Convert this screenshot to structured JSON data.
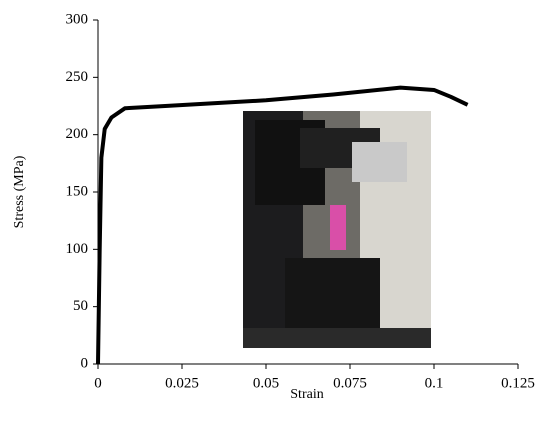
{
  "chart_data": {
    "type": "line",
    "xlabel": "Strain",
    "ylabel": "Stress  (MPa)",
    "x": [
      0,
      0.0005,
      0.001,
      0.002,
      0.004,
      0.008,
      0.02,
      0.05,
      0.07,
      0.09,
      0.1,
      0.105,
      0.11
    ],
    "values": [
      0,
      100,
      180,
      205,
      215,
      223,
      225,
      230,
      235,
      241,
      239,
      233,
      226
    ],
    "color": "#000000",
    "xlim": [
      0,
      0.125
    ],
    "xticks": [
      0,
      0.025,
      0.05,
      0.075,
      0.1,
      0.125
    ],
    "ylim": [
      0,
      300
    ],
    "yticks": [
      0,
      50,
      100,
      150,
      200,
      250,
      300
    ]
  }
}
